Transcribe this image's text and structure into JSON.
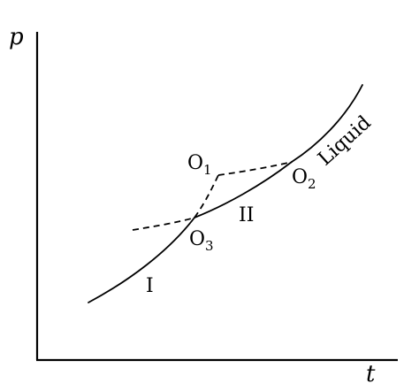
{
  "axes": {
    "y_label": "p",
    "x_label": "t"
  },
  "curve_labels": {
    "phase_one": "I",
    "phase_two": "II",
    "liquid": "Liquid"
  },
  "points": [
    {
      "letter": "O",
      "index": "1"
    },
    {
      "letter": "O",
      "index": "2"
    },
    {
      "letter": "O",
      "index": "3"
    }
  ]
}
